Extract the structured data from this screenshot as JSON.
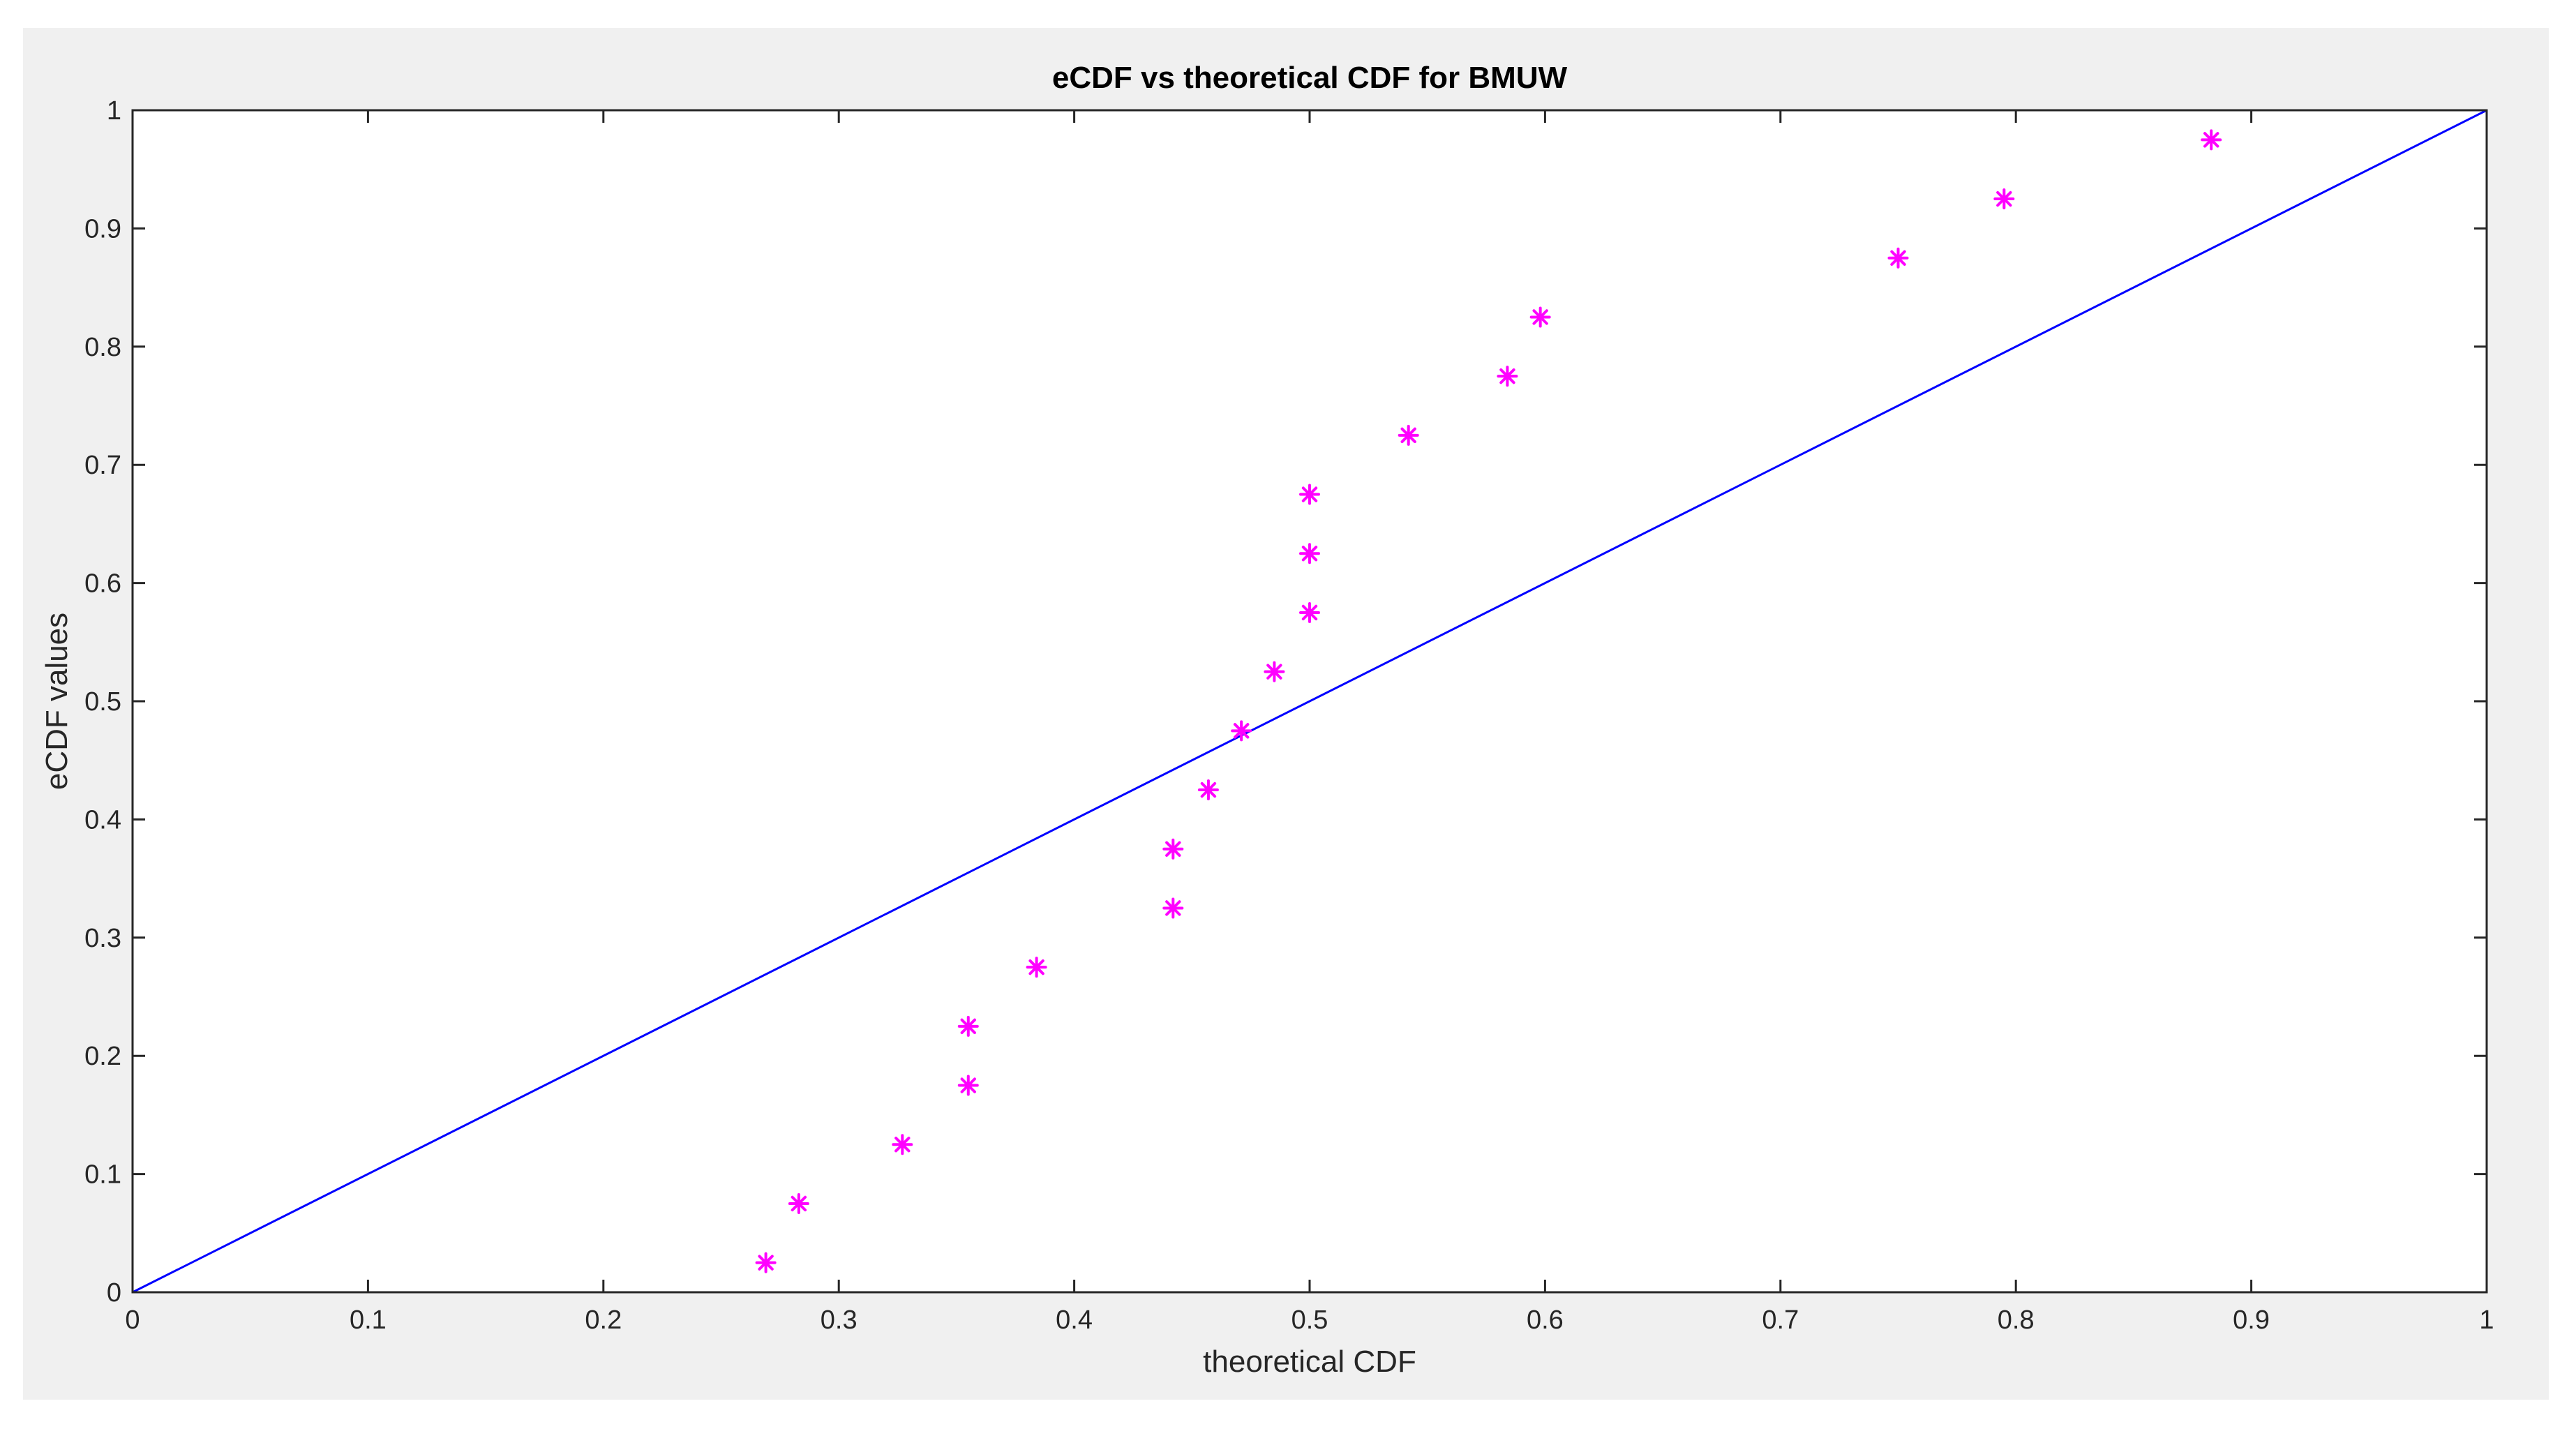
{
  "chart_data": {
    "type": "scatter",
    "title": "eCDF vs theoretical CDF for BMUW",
    "xlabel": "theoretical CDF",
    "ylabel": "eCDF values",
    "xlim": [
      0,
      1
    ],
    "ylim": [
      0,
      1
    ],
    "x_ticks": [
      "0",
      "0.1",
      "0.2",
      "0.3",
      "0.4",
      "0.5",
      "0.6",
      "0.7",
      "0.8",
      "0.9",
      "1"
    ],
    "y_ticks": [
      "0",
      "0.1",
      "0.2",
      "0.3",
      "0.4",
      "0.5",
      "0.6",
      "0.7",
      "0.8",
      "0.9",
      "1"
    ],
    "grid": false,
    "legend": "none",
    "series": [
      {
        "kind": "scatter",
        "marker": "asterisk",
        "color": "#ff00ff",
        "x": [
          0.269,
          0.283,
          0.327,
          0.355,
          0.355,
          0.384,
          0.442,
          0.442,
          0.457,
          0.471,
          0.485,
          0.5,
          0.5,
          0.5,
          0.542,
          0.584,
          0.598,
          0.75,
          0.795,
          0.883
        ],
        "y": [
          0.025,
          0.075,
          0.125,
          0.175,
          0.225,
          0.275,
          0.325,
          0.375,
          0.425,
          0.475,
          0.525,
          0.575,
          0.625,
          0.675,
          0.725,
          0.775,
          0.825,
          0.875,
          0.925,
          0.975
        ]
      },
      {
        "kind": "line",
        "color": "#0000ff",
        "x": [
          0,
          1
        ],
        "y": [
          0,
          1
        ]
      }
    ],
    "colors": {
      "figure_background": "#f0f0f0",
      "axes_background": "#ffffff",
      "axes_color": "#262626"
    }
  }
}
